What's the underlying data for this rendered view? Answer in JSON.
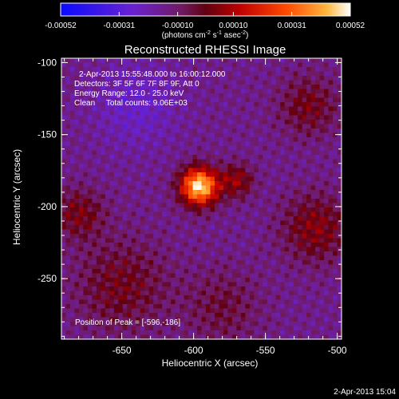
{
  "chart_data": {
    "type": "heatmap",
    "title": "Reconstructed RHESSI Image",
    "xlabel": "Heliocentric X (arcsec)",
    "ylabel": "Heliocentric Y (arcsec)",
    "xlim": [
      -692,
      -497
    ],
    "ylim": [
      -292,
      -97
    ],
    "x_ticks": [
      -650,
      -600,
      -550,
      -500
    ],
    "x_tick_labels": [
      "-650",
      "-600",
      "-550",
      "-500"
    ],
    "y_ticks": [
      -100,
      -150,
      -200,
      -250
    ],
    "y_tick_labels": [
      "-100",
      "-150",
      "-200",
      "-250"
    ],
    "colorbar": {
      "range": [
        -0.00052,
        0.00052
      ],
      "ticks": [
        -0.00052,
        -0.00031,
        -0.0001,
        0.0001,
        0.00031,
        0.00052
      ],
      "tick_labels": [
        "-0.00052",
        "-0.00031",
        "-0.00010",
        "0.00010",
        "0.00031",
        "0.00052"
      ],
      "units_prefix": "(photons cm",
      "units_suffix": ")",
      "units": "(photons cm^-2 s^-1 asec^-2)",
      "colormap": [
        "#0a0aff",
        "#5a1ec8",
        "#7a2aa0",
        "#7a1040",
        "#a00000",
        "#ff3000",
        "#ffa030",
        "#ffffff"
      ]
    },
    "peak": [
      -596,
      -186
    ],
    "annotations": [
      "2-Apr-2013 15:55:48.000 to 16:00:12.000",
      "Detectors: 3F 5F 6F 7F 8F 9F, Att 0",
      "Energy Range: 12.0 - 25.0 keV",
      "Clean     Total counts: 9.06E+03",
      "Position of Peak = [-596,-186]"
    ]
  },
  "footer_timestamp": "2-Apr-2013 15:04"
}
